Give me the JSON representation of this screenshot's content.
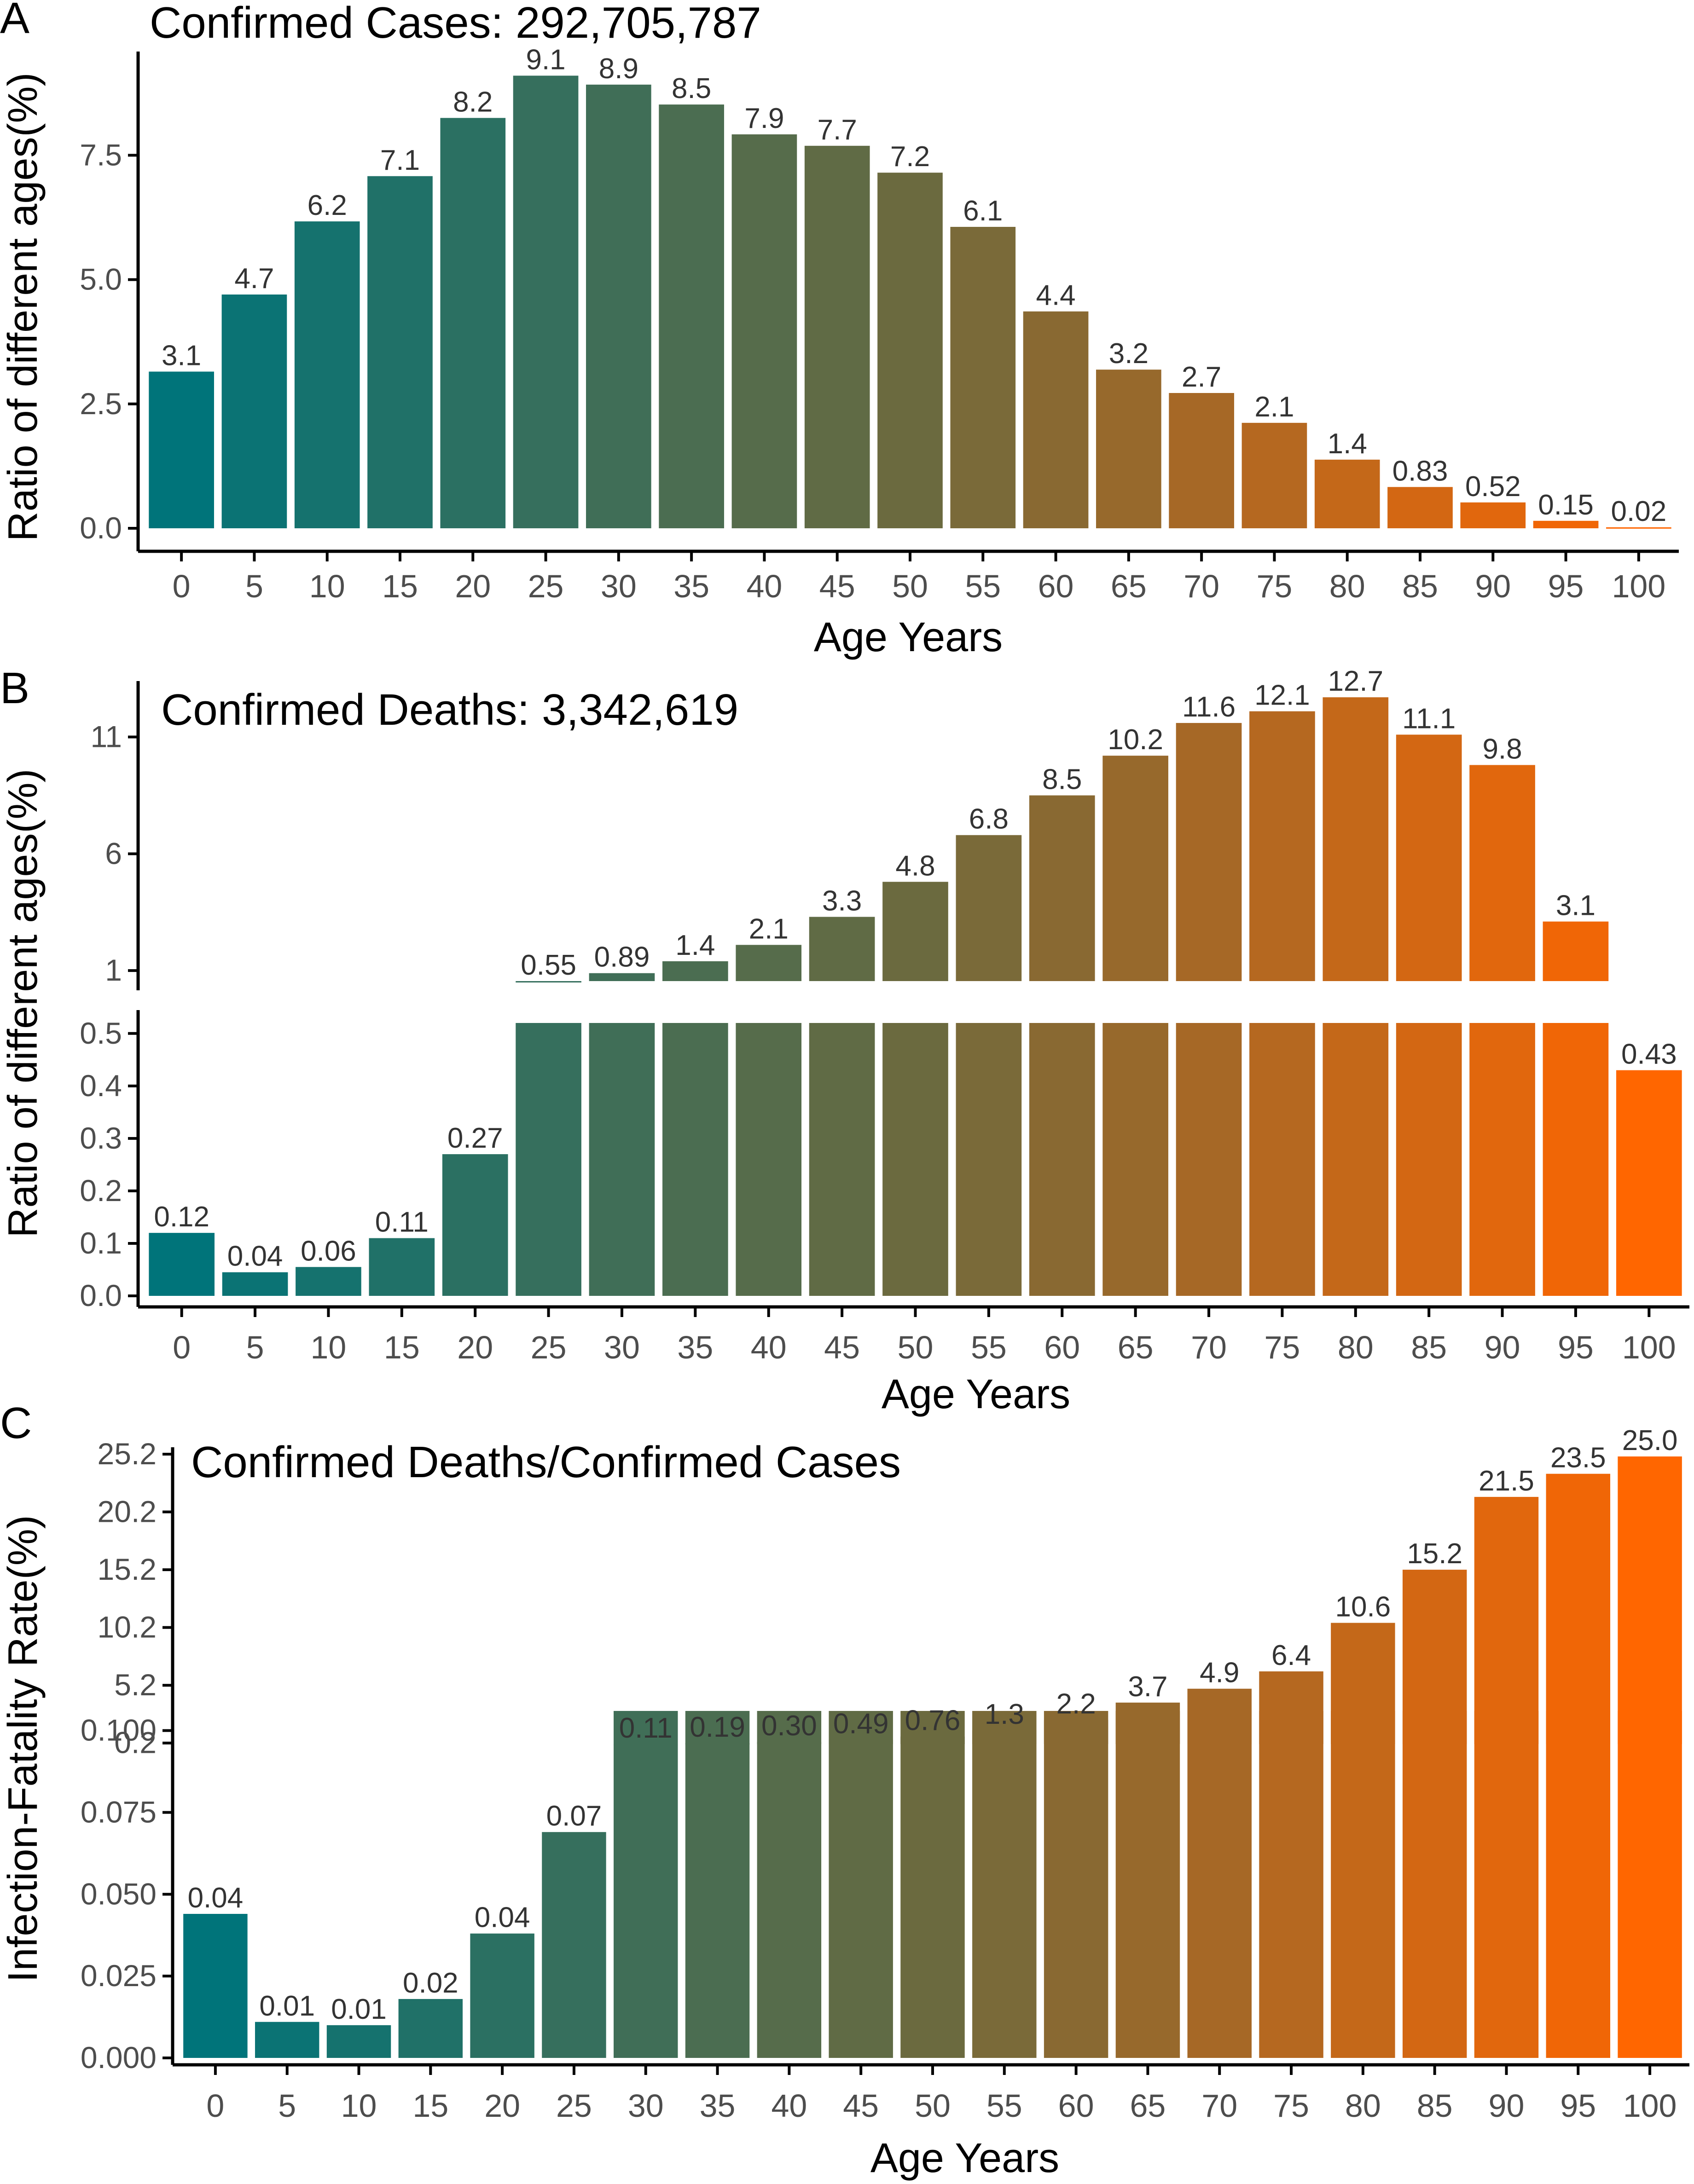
{
  "categories": [
    "0",
    "5",
    "10",
    "15",
    "20",
    "25",
    "30",
    "35",
    "40",
    "45",
    "50",
    "55",
    "60",
    "65",
    "70",
    "75",
    "80",
    "85",
    "90",
    "95",
    "100"
  ],
  "colors": {
    "start": "#00747A",
    "mid": "#6B6A3F",
    "end": "#FF6600",
    "axis": "#000000",
    "tick_text": "#4D4D4D",
    "label_text": "#333333"
  },
  "chart_data": [
    {
      "type": "bar",
      "panel": "A",
      "title": "Confirmed Cases: 292,705,787",
      "xlabel": "Age Years",
      "ylabel": "Ratio of different ages(%)",
      "ylim": [
        0,
        9.4
      ],
      "yticks": [
        0,
        2.5,
        5,
        7.5
      ],
      "ytick_labels": [
        "0.0",
        "2.5",
        "5.0",
        "7.5"
      ],
      "values": [
        3.15,
        4.7,
        6.17,
        7.08,
        8.25,
        9.1,
        8.92,
        8.52,
        7.92,
        7.69,
        7.15,
        6.06,
        4.36,
        3.19,
        2.72,
        2.12,
        1.38,
        0.83,
        0.52,
        0.15,
        0.02
      ],
      "value_labels": [
        "3.1",
        "4.7",
        "6.2",
        "7.1",
        "8.2",
        "9.1",
        "8.9",
        "8.5",
        "7.9",
        "7.7",
        "7.2",
        "6.1",
        "4.4",
        "3.2",
        "2.7",
        "2.1",
        "1.4",
        "0.83",
        "0.52",
        "0.15",
        "0.02"
      ]
    },
    {
      "type": "bar",
      "panel": "B",
      "title": "Confirmed Deaths: 3,342,619",
      "xlabel": "Age Years",
      "ylabel": "Ratio of different ages(%)",
      "broken_axis": true,
      "lower_segment": {
        "ylim": [
          0,
          0.52
        ],
        "yticks": [
          0,
          0.1,
          0.2,
          0.3,
          0.4,
          0.5
        ],
        "ytick_labels": [
          "0.0",
          "0.1",
          "0.2",
          "0.3",
          "0.4",
          "0.5"
        ]
      },
      "upper_segment": {
        "ylim": [
          0.55,
          13.0
        ],
        "yticks": [
          1,
          6,
          11
        ],
        "ytick_labels": [
          "1",
          "6",
          "11"
        ]
      },
      "values": [
        0.12,
        0.045,
        0.055,
        0.11,
        0.27,
        0.55,
        0.89,
        1.4,
        2.1,
        3.3,
        4.8,
        6.8,
        8.5,
        10.2,
        11.6,
        12.1,
        12.7,
        11.1,
        9.8,
        3.1,
        0.43
      ],
      "value_labels": [
        "0.12",
        "0.04",
        "0.06",
        "0.11",
        "0.27",
        "0.55",
        "0.89",
        "1.4",
        "2.1",
        "3.3",
        "4.8",
        "6.8",
        "8.5",
        "10.2",
        "11.6",
        "12.1",
        "12.7",
        "11.1",
        "9.8",
        "3.1",
        "0.43"
      ]
    },
    {
      "type": "bar",
      "panel": "C",
      "title": "Confirmed Deaths/Confirmed Cases",
      "xlabel": "Age Years",
      "ylabel": "Infection-Fatality Rate(%)",
      "broken_axis": true,
      "lower_segment": {
        "ylim": [
          0,
          0.106
        ],
        "yticks": [
          0,
          0.025,
          0.05,
          0.075,
          0.1
        ],
        "ytick_labels": [
          "0.000",
          "0.025",
          "0.050",
          "0.075",
          "0.100"
        ]
      },
      "upper_segment": {
        "ylim": [
          0.11,
          25.0
        ],
        "yticks": [
          0.2,
          5.2,
          10.2,
          15.2,
          20.2,
          25.2
        ],
        "ytick_labels": [
          "0.2",
          "5.2",
          "10.2",
          "15.2",
          "20.2",
          "25.2"
        ]
      },
      "values": [
        0.044,
        0.011,
        0.01,
        0.018,
        0.038,
        0.069,
        0.11,
        0.19,
        0.3,
        0.49,
        0.76,
        1.3,
        2.2,
        3.7,
        4.9,
        6.4,
        10.6,
        15.2,
        21.5,
        23.5,
        25.0
      ],
      "value_labels": [
        "0.04",
        "0.01",
        "0.01",
        "0.02",
        "0.04",
        "0.07",
        "0.11",
        "0.19",
        "0.30",
        "0.49",
        "0.76",
        "1.3",
        "2.2",
        "3.7",
        "4.9",
        "6.4",
        "10.6",
        "15.2",
        "21.5",
        "23.5",
        "25.0"
      ]
    }
  ],
  "panel_letters": [
    "A",
    "B",
    "C"
  ]
}
